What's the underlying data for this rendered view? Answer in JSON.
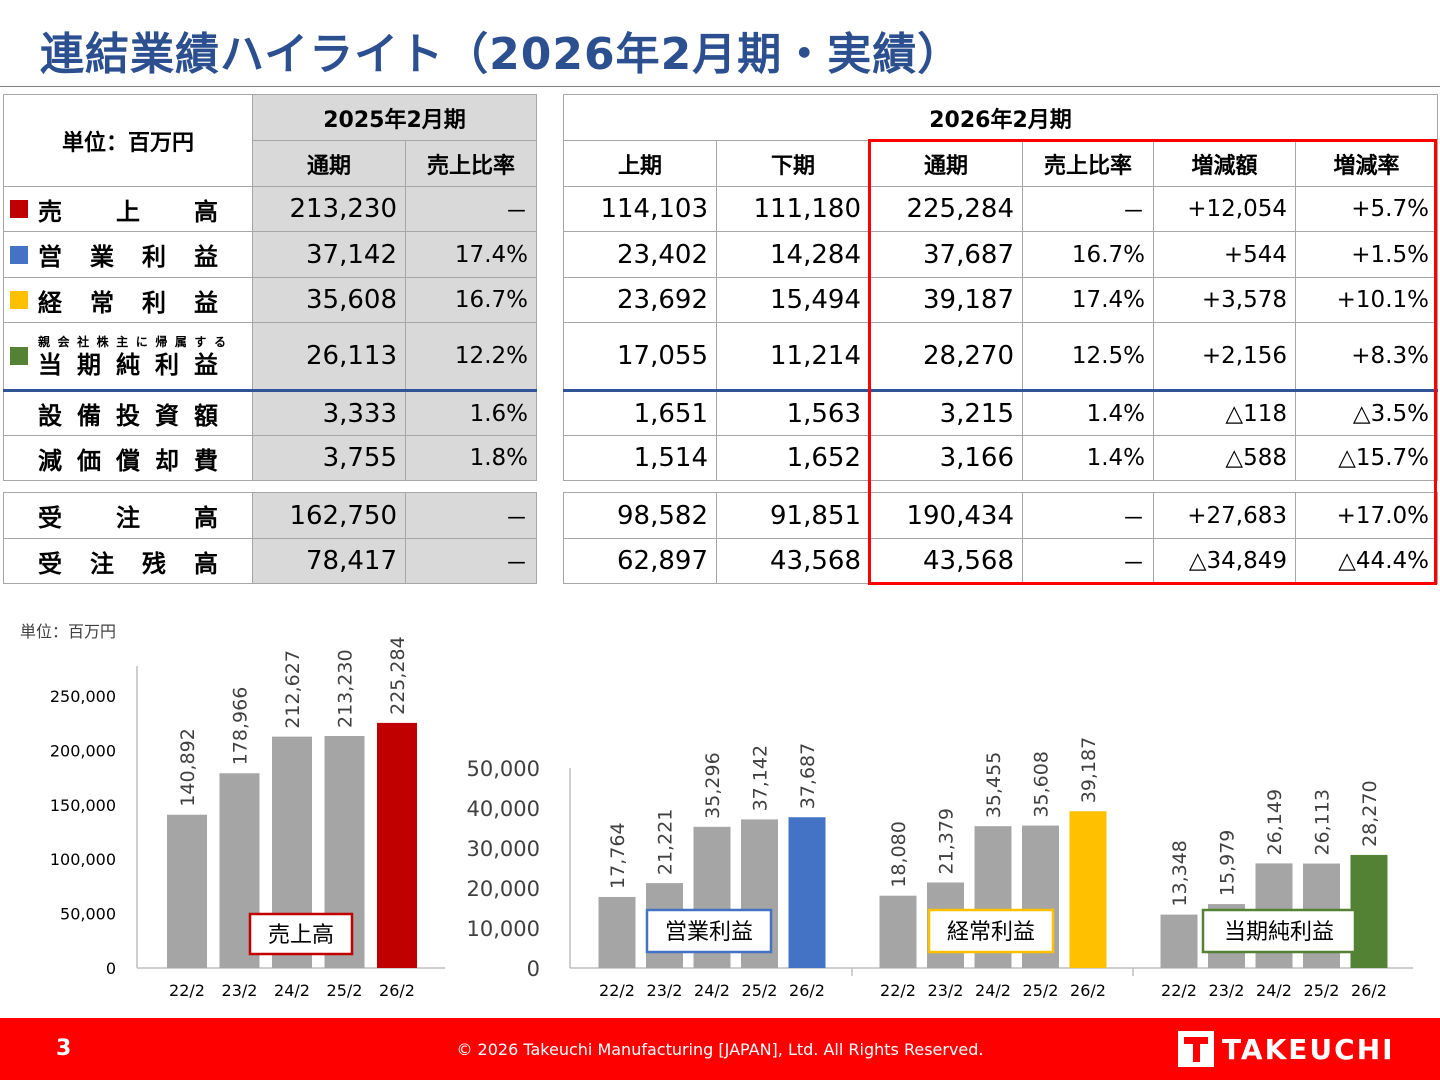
{
  "title": "連結業績ハイライト（2026年2月期・実績）",
  "table": {
    "unit_label": "単位：百万円",
    "fy2025_header": "2025年2月期",
    "fy2026_header": "2026年2月期",
    "col_full_year": "通期",
    "col_sales_ratio": "売上比率",
    "col_h1": "上期",
    "col_h2": "下期",
    "col_change_amount": "増減額",
    "col_change_rate": "増減率",
    "rows": [
      {
        "label": "売上高",
        "marker_color": "#c00000",
        "fy25": "213,230",
        "fy25_ratio": "－",
        "h1": "114,103",
        "h2": "111,180",
        "fy26": "225,284",
        "fy26_ratio": "－",
        "change": "+12,054",
        "rate": "+5.7%"
      },
      {
        "label": "営業利益",
        "marker_color": "#4472c4",
        "fy25": "37,142",
        "fy25_ratio": "17.4%",
        "h1": "23,402",
        "h2": "14,284",
        "fy26": "37,687",
        "fy26_ratio": "16.7%",
        "change": "+544",
        "rate": "+1.5%"
      },
      {
        "label": "経常利益",
        "marker_color": "#ffc000",
        "fy25": "35,608",
        "fy25_ratio": "16.7%",
        "h1": "23,692",
        "h2": "15,494",
        "fy26": "39,187",
        "fy26_ratio": "17.4%",
        "change": "+3,578",
        "rate": "+10.1%"
      },
      {
        "label_small": "親会社株主に帰属する",
        "label": "当期純利益",
        "marker_color": "#548235",
        "fy25": "26,113",
        "fy25_ratio": "12.2%",
        "h1": "17,055",
        "h2": "11,214",
        "fy26": "28,270",
        "fy26_ratio": "12.5%",
        "change": "+2,156",
        "rate": "+8.3%"
      },
      {
        "label": "設備投資額",
        "fy25": "3,333",
        "fy25_ratio": "1.6%",
        "h1": "1,651",
        "h2": "1,563",
        "fy26": "3,215",
        "fy26_ratio": "1.4%",
        "change": "△118",
        "rate": "△3.5%"
      },
      {
        "label": "減価償却費",
        "fy25": "3,755",
        "fy25_ratio": "1.8%",
        "h1": "1,514",
        "h2": "1,652",
        "fy26": "3,166",
        "fy26_ratio": "1.4%",
        "change": "△588",
        "rate": "△15.7%"
      }
    ],
    "order_rows": [
      {
        "label": "受注高",
        "fy25": "162,750",
        "fy25_ratio": "－",
        "h1": "98,582",
        "h2": "91,851",
        "fy26": "190,434",
        "fy26_ratio": "－",
        "change": "+27,683",
        "rate": "+17.0%"
      },
      {
        "label": "受注残高",
        "fy25": "78,417",
        "fy25_ratio": "－",
        "h1": "62,897",
        "h2": "43,568",
        "fy26": "43,568",
        "fy26_ratio": "－",
        "change": "△34,849",
        "rate": "△44.4%"
      }
    ]
  },
  "chart_unit": "単位：百万円",
  "chart_data": [
    {
      "type": "bar",
      "title": "売上高",
      "categories": [
        "22/2",
        "23/2",
        "24/2",
        "25/2",
        "26/2"
      ],
      "values": [
        140892,
        178966,
        212627,
        213230,
        225284
      ],
      "value_labels": [
        "140,892",
        "178,966",
        "212,627",
        "213,230",
        "225,284"
      ],
      "highlight_color": "#c00000",
      "ylim": [
        0,
        250000
      ],
      "yticks": [
        "0",
        "50,000",
        "100,000",
        "150,000",
        "200,000",
        "250,000"
      ]
    },
    {
      "type": "bar",
      "title": "営業利益",
      "categories": [
        "22/2",
        "23/2",
        "24/2",
        "25/2",
        "26/2"
      ],
      "values": [
        17764,
        21221,
        35296,
        37142,
        37687
      ],
      "value_labels": [
        "17,764",
        "21,221",
        "35,296",
        "37,142",
        "37,687"
      ],
      "highlight_color": "#4472c4",
      "ylim": [
        0,
        50000
      ],
      "yticks": [
        "0",
        "10,000",
        "20,000",
        "30,000",
        "40,000",
        "50,000"
      ]
    },
    {
      "type": "bar",
      "title": "経常利益",
      "categories": [
        "22/2",
        "23/2",
        "24/2",
        "25/2",
        "26/2"
      ],
      "values": [
        18080,
        21379,
        35455,
        35608,
        39187
      ],
      "value_labels": [
        "18,080",
        "21,379",
        "35,455",
        "35,608",
        "39,187"
      ],
      "highlight_color": "#ffc000",
      "ylim": [
        0,
        50000
      ]
    },
    {
      "type": "bar",
      "title": "当期純利益",
      "categories": [
        "22/2",
        "23/2",
        "24/2",
        "25/2",
        "26/2"
      ],
      "values": [
        13348,
        15979,
        26149,
        26113,
        28270
      ],
      "value_labels": [
        "13,348",
        "15,979",
        "26,149",
        "26,113",
        "28,270"
      ],
      "highlight_color": "#548235",
      "ylim": [
        0,
        50000
      ]
    }
  ],
  "footer": {
    "page_number": "3",
    "copyright": "© 2026 Takeuchi Manufacturing [JAPAN], Ltd. All Rights Reserved.",
    "logo_text": "TAKEUCHI"
  }
}
